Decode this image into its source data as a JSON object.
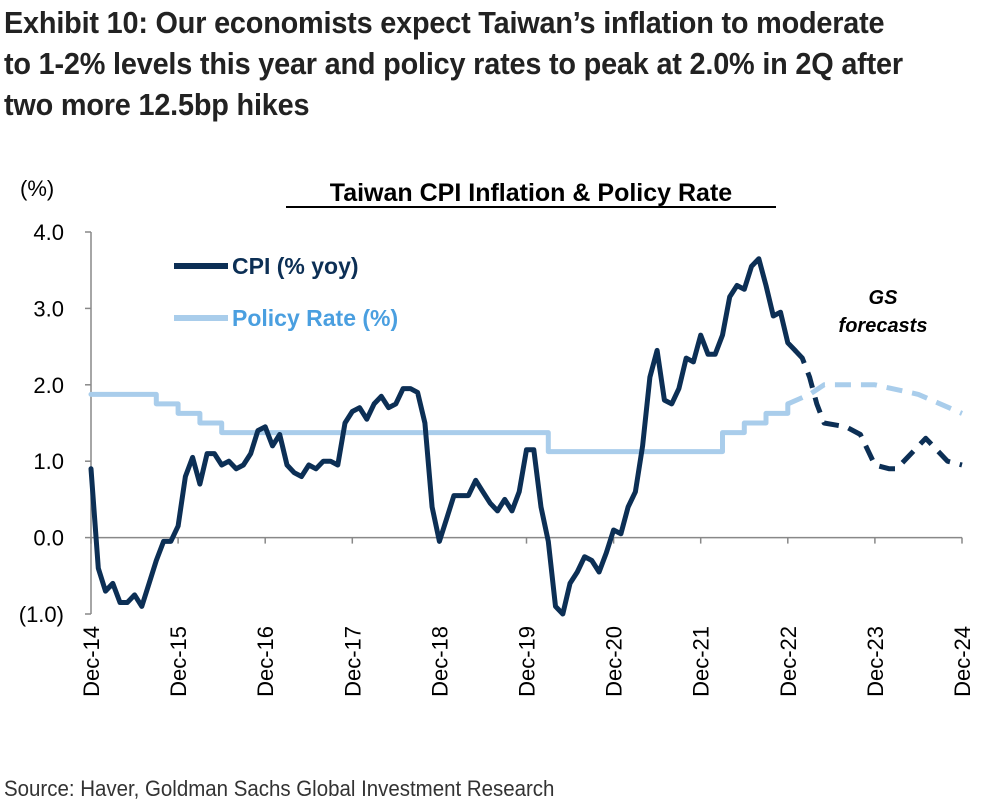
{
  "exhibit": {
    "title": "Exhibit 10: Our economists expect Taiwan’s inflation to moderate to 1-2% levels this year and policy rates to peak at 2.0% in 2Q after two more 12.5bp hikes",
    "source": "Source: Haver, Goldman Sachs Global Investment Research"
  },
  "chart_data": {
    "type": "line",
    "title": "Taiwan CPI Inflation & Policy Rate",
    "ylabel": "(%)",
    "ylim": [
      -1.0,
      4.0
    ],
    "yticks": [
      4.0,
      3.0,
      2.0,
      1.0,
      0.0,
      -1.0
    ],
    "ytick_labels": [
      "4.0",
      "3.0",
      "2.0",
      "1.0",
      "0.0",
      "(1.0)"
    ],
    "xticks": [
      "Dec-14",
      "Dec-15",
      "Dec-16",
      "Dec-17",
      "Dec-18",
      "Dec-19",
      "Dec-20",
      "Dec-21",
      "Dec-22",
      "Dec-23",
      "Dec-24"
    ],
    "x_start": "Dec-14",
    "x_end": "Dec-24",
    "annotation": [
      "GS",
      "forecasts"
    ],
    "grid": false,
    "legend_position": "top-left",
    "series": [
      {
        "name": "CPI (% yoy)",
        "color": "#0c2f55",
        "actual": [
          [
            "Dec-14",
            0.9
          ],
          [
            "Jan-15",
            -0.4
          ],
          [
            "Feb-15",
            -0.7
          ],
          [
            "Mar-15",
            -0.6
          ],
          [
            "Apr-15",
            -0.85
          ],
          [
            "May-15",
            -0.85
          ],
          [
            "Jun-15",
            -0.75
          ],
          [
            "Jul-15",
            -0.9
          ],
          [
            "Aug-15",
            -0.6
          ],
          [
            "Sep-15",
            -0.3
          ],
          [
            "Oct-15",
            -0.05
          ],
          [
            "Nov-15",
            -0.05
          ],
          [
            "Dec-15",
            0.15
          ],
          [
            "Jan-16",
            0.8
          ],
          [
            "Feb-16",
            1.05
          ],
          [
            "Mar-16",
            0.7
          ],
          [
            "Apr-16",
            1.1
          ],
          [
            "May-16",
            1.1
          ],
          [
            "Jun-16",
            0.95
          ],
          [
            "Jul-16",
            1.0
          ],
          [
            "Aug-16",
            0.9
          ],
          [
            "Sep-16",
            0.95
          ],
          [
            "Oct-16",
            1.1
          ],
          [
            "Nov-16",
            1.4
          ],
          [
            "Dec-16",
            1.45
          ],
          [
            "Jan-17",
            1.2
          ],
          [
            "Feb-17",
            1.35
          ],
          [
            "Mar-17",
            0.95
          ],
          [
            "Apr-17",
            0.85
          ],
          [
            "May-17",
            0.8
          ],
          [
            "Jun-17",
            0.95
          ],
          [
            "Jul-17",
            0.9
          ],
          [
            "Aug-17",
            1.0
          ],
          [
            "Sep-17",
            1.0
          ],
          [
            "Oct-17",
            0.95
          ],
          [
            "Nov-17",
            1.5
          ],
          [
            "Dec-17",
            1.65
          ],
          [
            "Jan-18",
            1.7
          ],
          [
            "Feb-18",
            1.55
          ],
          [
            "Mar-18",
            1.75
          ],
          [
            "Apr-18",
            1.85
          ],
          [
            "May-18",
            1.7
          ],
          [
            "Jun-18",
            1.75
          ],
          [
            "Jul-18",
            1.95
          ],
          [
            "Aug-18",
            1.95
          ],
          [
            "Sep-18",
            1.9
          ],
          [
            "Oct-18",
            1.5
          ],
          [
            "Nov-18",
            0.4
          ],
          [
            "Dec-18",
            -0.05
          ],
          [
            "Jan-19",
            0.25
          ],
          [
            "Feb-19",
            0.55
          ],
          [
            "Mar-19",
            0.55
          ],
          [
            "Apr-19",
            0.55
          ],
          [
            "May-19",
            0.75
          ],
          [
            "Jun-19",
            0.6
          ],
          [
            "Jul-19",
            0.45
          ],
          [
            "Aug-19",
            0.35
          ],
          [
            "Sep-19",
            0.5
          ],
          [
            "Oct-19",
            0.35
          ],
          [
            "Nov-19",
            0.6
          ],
          [
            "Dec-19",
            1.15
          ],
          [
            "Jan-20",
            1.15
          ],
          [
            "Feb-20",
            0.4
          ],
          [
            "Mar-20",
            -0.05
          ],
          [
            "Apr-20",
            -0.9
          ],
          [
            "May-20",
            -1.0
          ],
          [
            "Jun-20",
            -0.6
          ],
          [
            "Jul-20",
            -0.45
          ],
          [
            "Aug-20",
            -0.25
          ],
          [
            "Sep-20",
            -0.3
          ],
          [
            "Oct-20",
            -0.45
          ],
          [
            "Nov-20",
            -0.2
          ],
          [
            "Dec-20",
            0.1
          ],
          [
            "Jan-21",
            0.05
          ],
          [
            "Feb-21",
            0.4
          ],
          [
            "Mar-21",
            0.6
          ],
          [
            "Apr-21",
            1.2
          ],
          [
            "May-21",
            2.1
          ],
          [
            "Jun-21",
            2.45
          ],
          [
            "Jul-21",
            1.8
          ],
          [
            "Aug-21",
            1.75
          ],
          [
            "Sep-21",
            1.95
          ],
          [
            "Oct-21",
            2.35
          ],
          [
            "Nov-21",
            2.3
          ],
          [
            "Dec-21",
            2.65
          ],
          [
            "Jan-22",
            2.4
          ],
          [
            "Feb-22",
            2.4
          ],
          [
            "Mar-22",
            2.65
          ],
          [
            "Apr-22",
            3.15
          ],
          [
            "May-22",
            3.3
          ],
          [
            "Jun-22",
            3.25
          ],
          [
            "Jul-22",
            3.55
          ],
          [
            "Aug-22",
            3.65
          ],
          [
            "Sep-22",
            3.3
          ],
          [
            "Oct-22",
            2.9
          ],
          [
            "Nov-22",
            2.95
          ],
          [
            "Dec-22",
            2.55
          ],
          [
            "Jan-23",
            2.45
          ]
        ],
        "forecast": [
          [
            "Jan-23",
            2.45
          ],
          [
            "Feb-23",
            2.35
          ],
          [
            "Mar-23",
            2.1
          ],
          [
            "Apr-23",
            1.75
          ],
          [
            "May-23",
            1.5
          ],
          [
            "Aug-23",
            1.45
          ],
          [
            "Oct-23",
            1.35
          ],
          [
            "Nov-23",
            1.15
          ],
          [
            "Dec-23",
            0.95
          ],
          [
            "Feb-24",
            0.9
          ],
          [
            "Mar-24",
            0.9
          ],
          [
            "Jul-24",
            1.3
          ],
          [
            "Aug-24",
            1.2
          ],
          [
            "Oct-24",
            1.0
          ],
          [
            "Dec-24",
            0.95
          ]
        ]
      },
      {
        "name": "Policy Rate (%)",
        "color": "#a9cdeb",
        "actual": [
          [
            "Dec-14",
            1.875
          ],
          [
            "Sep-15",
            1.875
          ],
          [
            "Sep-15",
            1.75
          ],
          [
            "Dec-15",
            1.75
          ],
          [
            "Dec-15",
            1.625
          ],
          [
            "Mar-16",
            1.625
          ],
          [
            "Mar-16",
            1.5
          ],
          [
            "Jun-16",
            1.5
          ],
          [
            "Jun-16",
            1.375
          ],
          [
            "Mar-20",
            1.375
          ],
          [
            "Mar-20",
            1.125
          ],
          [
            "Mar-22",
            1.125
          ],
          [
            "Mar-22",
            1.375
          ],
          [
            "Jun-22",
            1.375
          ],
          [
            "Jun-22",
            1.5
          ],
          [
            "Sep-22",
            1.5
          ],
          [
            "Sep-22",
            1.625
          ],
          [
            "Dec-22",
            1.625
          ],
          [
            "Dec-22",
            1.75
          ]
        ],
        "forecast": [
          [
            "Dec-22",
            1.75
          ],
          [
            "Mar-23",
            1.875
          ],
          [
            "May-23",
            2.0
          ],
          [
            "Dec-23",
            2.0
          ],
          [
            "Jun-24",
            1.875
          ],
          [
            "Dec-24",
            1.625
          ]
        ]
      }
    ]
  }
}
